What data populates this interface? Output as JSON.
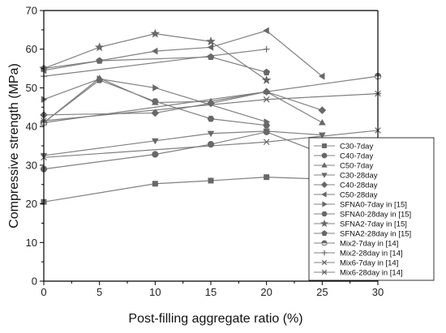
{
  "chart_data": {
    "type": "line",
    "xlabel": "Post-filling aggregate ratio (%)",
    "ylabel": "Compressive strength (MPa)",
    "xlim": [
      0,
      30
    ],
    "ylim": [
      0,
      70
    ],
    "xticks": [
      0,
      5,
      10,
      15,
      20,
      25,
      30
    ],
    "yticks": [
      0,
      10,
      20,
      30,
      40,
      50,
      60,
      70
    ],
    "grid": false,
    "legend_position": "bottom-right",
    "series": [
      {
        "name": "C30-7day",
        "marker": "square",
        "x": [
          0,
          10,
          15,
          20,
          25
        ],
        "y": [
          20.5,
          25.2,
          26.0,
          26.9,
          26.4
        ]
      },
      {
        "name": "C40-7day",
        "marker": "circle",
        "x": [
          0,
          10,
          15,
          20,
          25
        ],
        "y": [
          29.0,
          32.8,
          35.4,
          38.6,
          33.0
        ]
      },
      {
        "name": "C50-7day",
        "marker": "triangle-up",
        "x": [
          0,
          5,
          10,
          15,
          20,
          25
        ],
        "y": [
          41.0,
          52.5,
          46.2,
          46.5,
          49.0,
          41.0
        ]
      },
      {
        "name": "C30-28day",
        "marker": "triangle-down",
        "x": [
          0,
          10,
          15,
          20,
          25
        ],
        "y": [
          32.5,
          36.3,
          38.2,
          38.8,
          37.8
        ]
      },
      {
        "name": "C40-28day",
        "marker": "diamond",
        "x": [
          0,
          10,
          15,
          20,
          25
        ],
        "y": [
          43.0,
          43.5,
          46.0,
          49.0,
          44.2
        ]
      },
      {
        "name": "C50-28day",
        "marker": "triangle-left",
        "x": [
          0,
          10,
          15,
          20,
          25
        ],
        "y": [
          54.5,
          59.5,
          60.5,
          64.8,
          53.0
        ]
      },
      {
        "name": "SFNA0-7day in [15]",
        "marker": "triangle-right",
        "x": [
          0,
          5,
          10,
          20
        ],
        "y": [
          47.0,
          52.3,
          50.0,
          41.2
        ]
      },
      {
        "name": "SFNA0-28day in [15]",
        "marker": "hexagon",
        "x": [
          0,
          5,
          10,
          15,
          20
        ],
        "y": [
          41.0,
          52.0,
          46.5,
          42.0,
          40.3
        ]
      },
      {
        "name": "SFNA2-7day in [15]",
        "marker": "star",
        "x": [
          0,
          5,
          10,
          15,
          20
        ],
        "y": [
          55.0,
          60.5,
          64.0,
          62.0,
          52.0
        ]
      },
      {
        "name": "SFNA2-28day in [15]",
        "marker": "pentagon",
        "x": [
          0,
          5,
          15,
          20
        ],
        "y": [
          55.0,
          57.0,
          58.0,
          54.0
        ]
      },
      {
        "name": "Mix2-7day in [14]",
        "marker": "circle-half",
        "x": [
          0,
          30
        ],
        "y": [
          41.0,
          53.0
        ]
      },
      {
        "name": "Mix2-28day in [14]",
        "marker": "plus",
        "x": [
          0,
          20
        ],
        "y": [
          53.0,
          60.0
        ]
      },
      {
        "name": "Mix6-7day in [14]",
        "marker": "x",
        "x": [
          0,
          20,
          30
        ],
        "y": [
          32.0,
          36.0,
          39.0
        ]
      },
      {
        "name": "Mix6-28day in [14]",
        "marker": "asterisk",
        "x": [
          0,
          20,
          30
        ],
        "y": [
          41.5,
          47.0,
          48.5
        ]
      }
    ],
    "colors": {
      "line": "#808080",
      "marker": "#686868",
      "axis": "#000000"
    }
  }
}
